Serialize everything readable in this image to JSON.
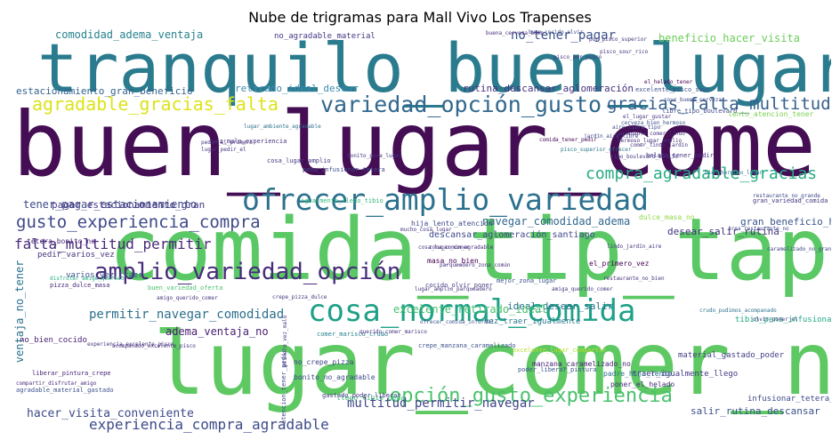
{
  "title": "Nube de trigramas para Mall Vivo Los Trapenses",
  "words": [
    {
      "text": "tranquilo_buen_lugar",
      "color": "#2a7b8e"
    },
    {
      "text": "buen_lugar_comer",
      "color": "#440d54"
    },
    {
      "text": "comida_tip_tap",
      "color": "#5ac864"
    },
    {
      "text": "lugar_comer_no",
      "color": "#5ec962"
    },
    {
      "text": "ofrecer_amplio_variedad",
      "color": "#2c718e"
    },
    {
      "text": "amplio_variedad_opción",
      "color": "#472c7a"
    },
    {
      "text": "cosa_normal_comida",
      "color": "#1fa187"
    },
    {
      "text": "variedad_opción_gusto",
      "color": "#31688e"
    },
    {
      "text": "agradable_gracias_falta",
      "color": "#dde318"
    },
    {
      "text": "gracias_falta_multitud",
      "color": "#355f8d"
    },
    {
      "text": "compra_agradable_gracias",
      "color": "#25ab82"
    },
    {
      "text": "gusto_experiencia_compra",
      "color": "#3e4989"
    },
    {
      "text": "falta_multitud_permitir",
      "color": "#482979"
    },
    {
      "text": "opción_gusto_experiencia",
      "color": "#4ac16d"
    },
    {
      "text": "experiencia_compra_agradable",
      "color": "#3e4a89"
    },
    {
      "text": "multitud_permitir_navegar",
      "color": "#414487"
    },
    {
      "text": "permitir_navegar_comodidad",
      "color": "#2d708e"
    },
    {
      "text": "no_tener_pagar",
      "color": "#3b518b"
    },
    {
      "text": "comodidad_adema_ventaja",
      "color": "#26828e"
    },
    {
      "text": "navegar_comodidad_adema",
      "color": "#31688e"
    },
    {
      "text": "tener_pagar_estacionamiento",
      "color": "#3e4989"
    },
    {
      "text": "pagar_estacionamiento_gran",
      "color": "#443983"
    },
    {
      "text": "estacionamiento_gran_beneficio",
      "color": "#33638d"
    },
    {
      "text": "beneficio_hacer_visita",
      "color": "#6ccd5a"
    },
    {
      "text": "gran_beneficio_hacer",
      "color": "#39568c"
    },
    {
      "text": "hacer_visita_conveniente",
      "color": "#3e4a89"
    },
    {
      "text": "adema_ventaja_no",
      "color": "#481d6f"
    },
    {
      "text": "ventaja_no_tener",
      "color": "#2c718e"
    },
    {
      "text": "retirado_ideal_desear",
      "color": "#3b8bb0"
    },
    {
      "text": "ideal_desear_salir",
      "color": "#2c718e"
    },
    {
      "text": "desear_salir_rutina",
      "color": "#46327e"
    },
    {
      "text": "salir_rutina_descansar",
      "color": "#3b518b"
    },
    {
      "text": "rutina_descansar_aglomeración",
      "color": "#46327e"
    },
    {
      "text": "descansar_aglomeración_santiago",
      "color": "#3e4989"
    },
    {
      "text": "excelente_retirado_ideal",
      "color": "#4ac16d"
    },
    {
      "text": "no_agradable_material",
      "color": "#453781"
    },
    {
      "text": "lento_atencion_tener",
      "color": "#7ad151"
    },
    {
      "text": "no_bien_cocido",
      "color": "#481f70"
    },
    {
      "text": "vez_traer_igualmente",
      "color": "#2a788e"
    },
    {
      "text": "tibio_pena_infusionar",
      "color": "#22a884"
    },
    {
      "text": "dulce_masa_no",
      "color": "#8fd744"
    },
    {
      "text": "hija_lento_atencion",
      "color": "#3e4989"
    },
    {
      "text": "pedir_varios_vez",
      "color": "#46327e"
    },
    {
      "text": "varios_vez_traer",
      "color": "#3b528b"
    },
    {
      "text": "tetera_bonito_no",
      "color": "#482878"
    },
    {
      "text": "masa_no_bien",
      "color": "#440154"
    },
    {
      "text": "el_primero_vez",
      "color": "#440154"
    },
    {
      "text": "traer_igualmente_llego",
      "color": "#443983"
    },
    {
      "text": "infusionar_tetera_bonito",
      "color": "#3e4a89"
    },
    {
      "text": "material_gastado_poder",
      "color": "#433e85"
    },
    {
      "text": "poner_el_helado",
      "color": "#482979"
    },
    {
      "text": "padre_hija_lento",
      "color": "#2d708e"
    },
    {
      "text": "llego_tibio_pena",
      "color": "#38b977"
    },
    {
      "text": "bonito_no_agradable",
      "color": "#3e4989"
    },
    {
      "text": "no_crepe_pizza",
      "color": "#404588"
    },
    {
      "text": "manzana_caramelizado_no",
      "color": "#482475"
    },
    {
      "text": "mejor_zona_lugar",
      "color": "#3b528b"
    },
    {
      "text": "cocido_olvir_poner",
      "color": "#433e85"
    },
    {
      "text": "vez_malo_experiencia",
      "color": "#46327e"
    },
    {
      "text": "helado_tener_pedir",
      "color": "#46327e"
    },
    {
      "text": "cosa_lugar_amplio",
      "color": "#443983"
    },
    {
      "text": "pena_infusionar_tetera",
      "color": "#3e4989"
    },
    {
      "text": "igualmente_llego_tibio",
      "color": "#35b779"
    },
    {
      "text": "buen_variedad_oferta",
      "color": "#4ac16d"
    },
    {
      "text": "crepe_manzana_caramelizado",
      "color": "#3b528b"
    },
    {
      "text": "pizza_dulce_masa",
      "color": "#472d7b"
    },
    {
      "text": "libre_tipo_boulevard",
      "color": "#3e4989"
    },
    {
      "text": "excelente_pisco_sour",
      "color": "#3b528b"
    },
    {
      "text": "comer_marisco_crudo",
      "color": "#26828e"
    },
    {
      "text": "gran_variedad_comida",
      "color": "#46327e"
    },
    {
      "text": "atencion_tener_pedir",
      "color": "#3e4989"
    },
    {
      "text": "gastado_poder_liberar",
      "color": "#443983"
    },
    {
      "text": "poder_liberar_pintura",
      "color": "#3b528b"
    },
    {
      "text": "liberar_pintura_crepe",
      "color": "#482475"
    },
    {
      "text": "disfrutar_amigo_querido",
      "color": "#27ad81"
    },
    {
      "text": "amigo_querido_comer",
      "color": "#46327e"
    },
    {
      "text": "querido_comer_marisco",
      "color": "#46327e"
    },
    {
      "text": "zona_común_agradable",
      "color": "#472c7a"
    },
    {
      "text": "parqueadero_zona_común",
      "color": "#46327e"
    },
    {
      "text": "agradable_material_gastado",
      "color": "#3b528b"
    },
    {
      "text": "excelente_lugar_compartir",
      "color": "#b5de2b"
    },
    {
      "text": "buen_cocido_olvir",
      "color": "#3e4989"
    },
    {
      "text": "bonito_pena_lugar",
      "color": "#46327e"
    },
    {
      "text": "lindo_jardín_aire",
      "color": "#46327e"
    },
    {
      "text": "comer_lindo_jardín",
      "color": "#46327e"
    },
    {
      "text": "jardín_aire_libre",
      "color": "#3e4989"
    },
    {
      "text": "aire_libre_tipo",
      "color": "#3e4989"
    },
    {
      "text": "tipo_boulevard_bonito",
      "color": "#443983"
    },
    {
      "text": "cerveza_bien_hermoso",
      "color": "#3b528b"
    },
    {
      "text": "buena_cerveza_bien",
      "color": "#472c7a"
    },
    {
      "text": "lugar_pedir_el",
      "color": "#46327e"
    },
    {
      "text": "pedir_el_primero",
      "color": "#46327e"
    },
    {
      "text": "crudo_pudimos_acompanado",
      "color": "#2c718e"
    },
    {
      "text": "olvir_poner_el",
      "color": "#46327e"
    },
    {
      "text": "pisco_sour_rico",
      "color": "#46327e"
    },
    {
      "text": "caramelizado_no_grande",
      "color": "#414487"
    },
    {
      "text": "bien_hermoso_lugar",
      "color": "#2a788e"
    },
    {
      "text": "área_restaurante_no",
      "color": "#3e4989"
    },
    {
      "text": "restaurante_no_grande",
      "color": "#3e4989"
    },
    {
      "text": "compartir_disfrutar_amigo",
      "color": "#472c7a"
    },
    {
      "text": "comida_tener_pedir",
      "color": "#440154"
    },
    {
      "text": "primero_vez_malo",
      "color": "#46327e"
    },
    {
      "text": "pisco_superior_ofrecer",
      "color": "#2a788e"
    },
    {
      "text": "por_pisco_superior",
      "color": "#46327e"
    },
    {
      "text": "pisco_por_pisco",
      "color": "#46327e"
    },
    {
      "text": "el_helado_tener",
      "color": "#440154"
    },
    {
      "text": "sour_buena_cerveza",
      "color": "#3e4989"
    },
    {
      "text": "ofrecer_comida_informal",
      "color": "#3b528b"
    },
    {
      "text": "experiencia_excelente_pisco",
      "color": "#46327e"
    },
    {
      "text": "acompanado_excelente_pisco",
      "color": "#46327e"
    },
    {
      "text": "lugar_ambiente_agradable",
      "color": "#2c718e"
    },
    {
      "text": "lugar_amplio_parqueadero",
      "color": "#46327e"
    },
    {
      "text": "hermoso_lugar_amplio",
      "color": "#46327e"
    },
    {
      "text": "agradable_comer_lindo",
      "color": "#46327e"
    },
    {
      "text": "el_lugar_gustar",
      "color": "#46327e"
    },
    {
      "text": "cosa_lugar_comer",
      "color": "#46327e"
    },
    {
      "text": "mucho_cosa_lugar",
      "color": "#46327e"
    },
    {
      "text": "restaurante_no_bien",
      "color": "#46327e"
    },
    {
      "text": "crepe_pizza_dulce",
      "color": "#46327e"
    },
    {
      "text": "amiga_querido_comer",
      "color": "#46327e"
    },
    {
      "text": "comodidad_adema_ventaja",
      "color": "#26828e"
    }
  ]
}
